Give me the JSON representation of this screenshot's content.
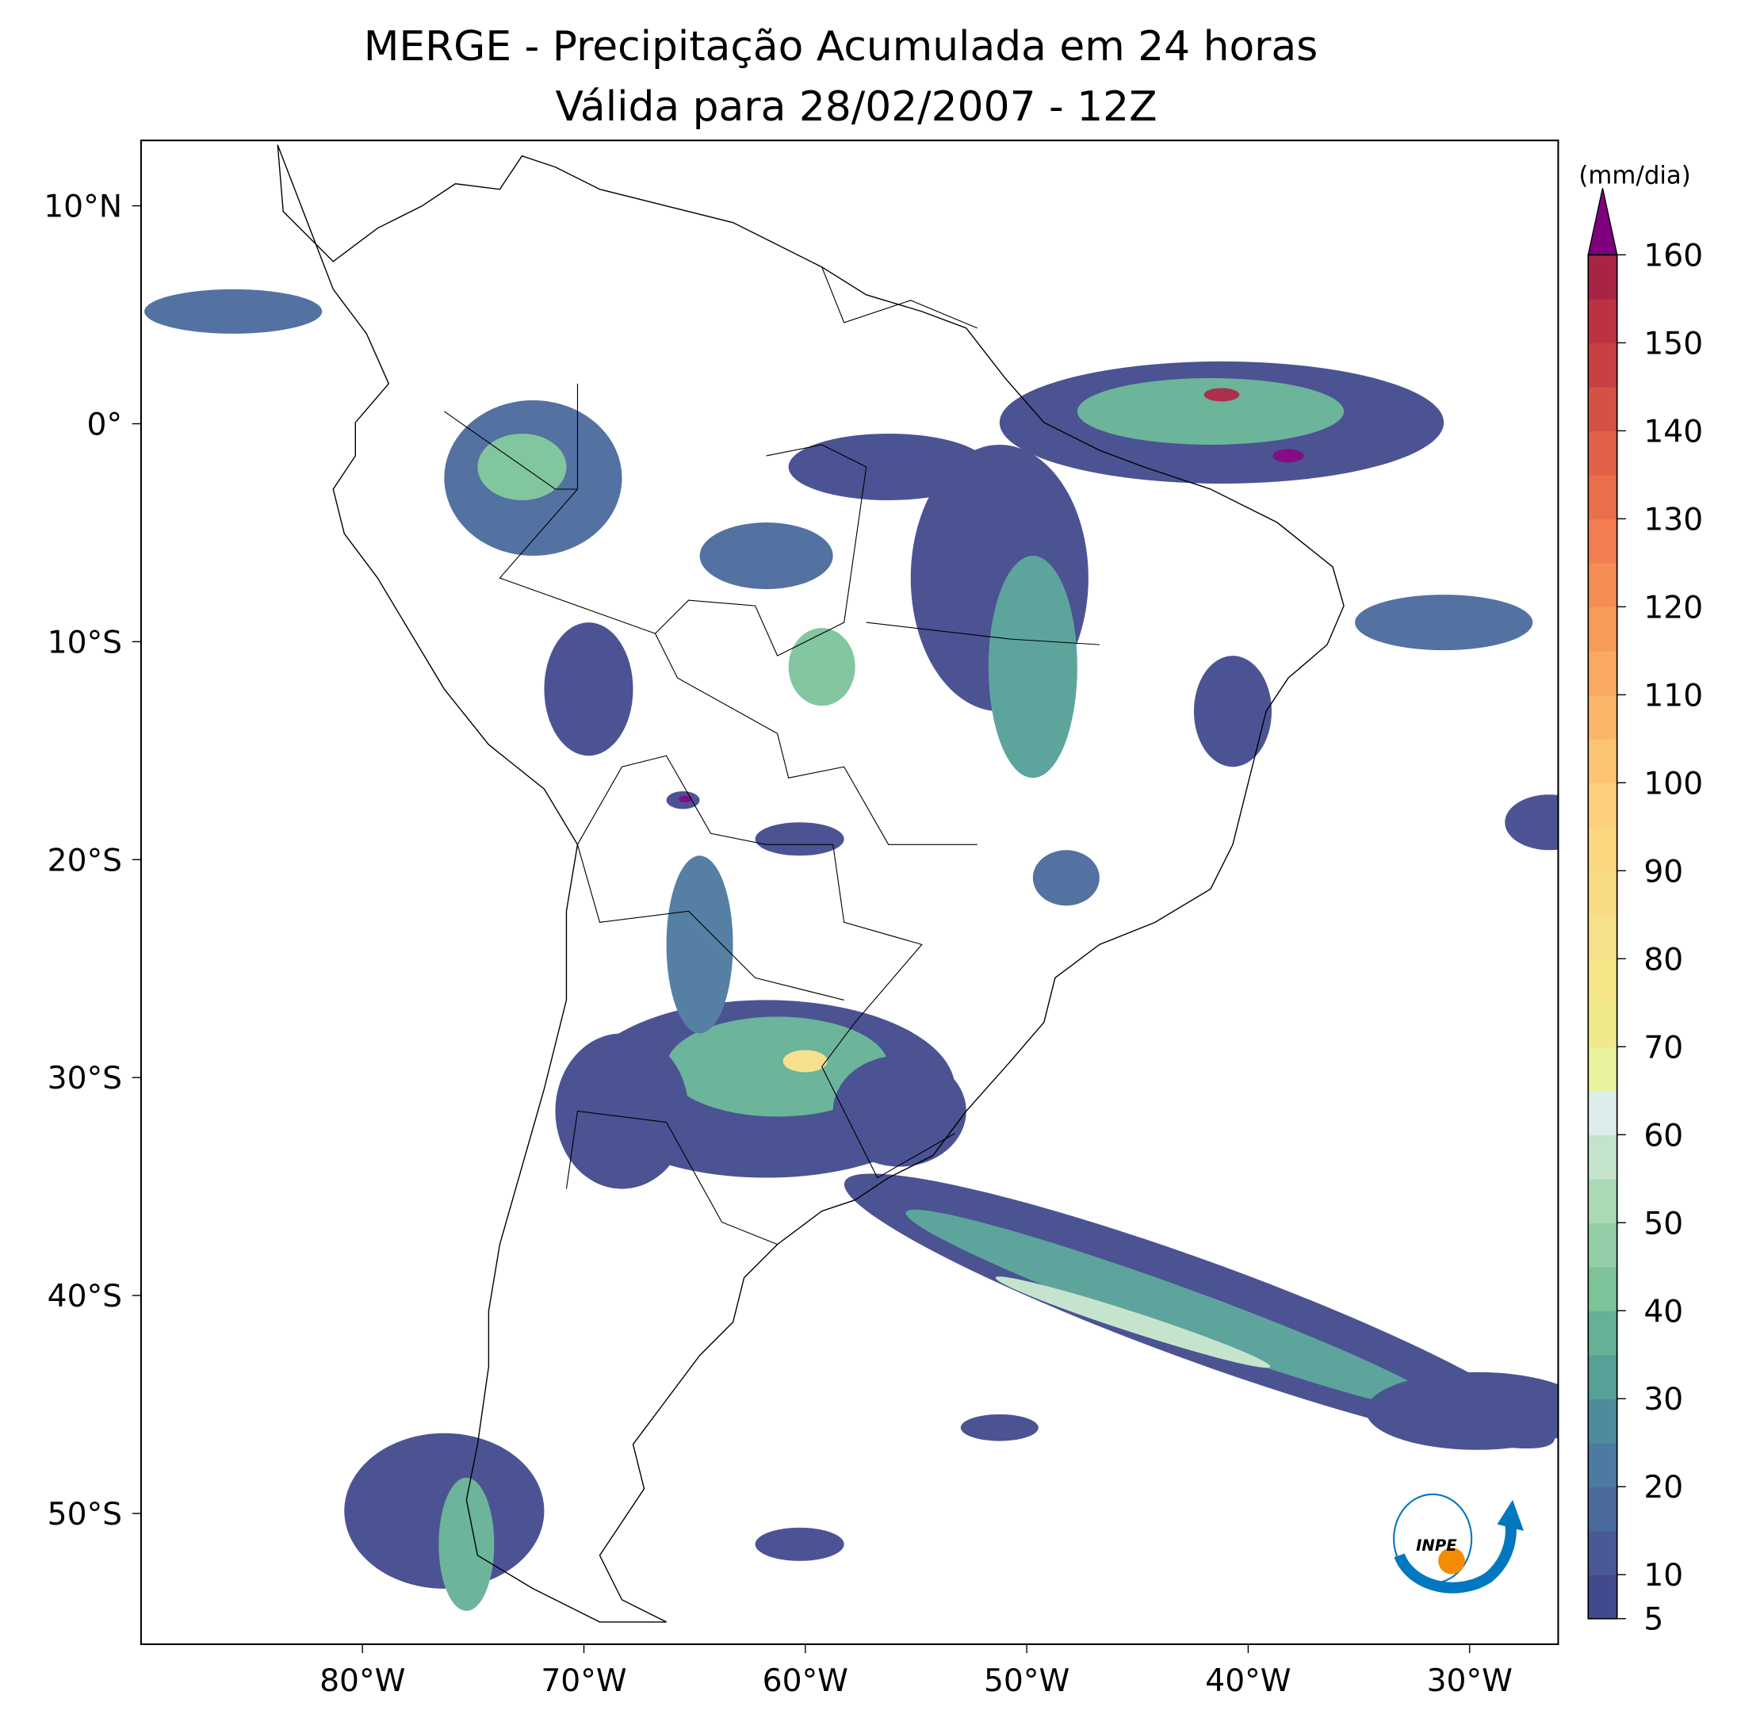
{
  "chart_data": {
    "type": "map",
    "title": "MERGE - Precipitação Acumulada em 24 horas",
    "subtitle": "Válida para 28/02/2007 - 12Z",
    "xlim": [
      -90,
      -26
    ],
    "ylim": [
      -56,
      13
    ],
    "xticks": [
      {
        "value": -80,
        "label": "80°W"
      },
      {
        "value": -70,
        "label": "70°W"
      },
      {
        "value": -60,
        "label": "60°W"
      },
      {
        "value": -50,
        "label": "50°W"
      },
      {
        "value": -40,
        "label": "40°W"
      },
      {
        "value": -30,
        "label": "30°W"
      }
    ],
    "yticks": [
      {
        "value": 10,
        "label": "10°N"
      },
      {
        "value": 0,
        "label": "0°"
      },
      {
        "value": -10,
        "label": "10°S"
      },
      {
        "value": -20,
        "label": "20°S"
      },
      {
        "value": -30,
        "label": "30°S"
      },
      {
        "value": -40,
        "label": "40°S"
      },
      {
        "value": -50,
        "label": "50°S"
      }
    ],
    "colorbar": {
      "label": "(mm/dia)",
      "levels": [
        5,
        10,
        15,
        20,
        25,
        30,
        35,
        40,
        45,
        50,
        55,
        60,
        65,
        70,
        75,
        80,
        85,
        90,
        95,
        100,
        105,
        110,
        115,
        120,
        125,
        130,
        135,
        140,
        145,
        150,
        155,
        160
      ],
      "ticks": [
        5,
        10,
        20,
        30,
        40,
        50,
        60,
        70,
        80,
        90,
        100,
        110,
        120,
        130,
        140,
        150,
        160
      ],
      "colors": [
        "#424a8e",
        "#485995",
        "#4a6a9c",
        "#4c7aa0",
        "#4e8c9d",
        "#55a097",
        "#65b195",
        "#7cc39a",
        "#93cea8",
        "#aad9b5",
        "#c3e3cb",
        "#dcedec",
        "#e9f29c",
        "#f0e98c",
        "#f4e587",
        "#f7e08a",
        "#f9db84",
        "#fbd77f",
        "#fcd07c",
        "#fcc372",
        "#fbb569",
        "#f9a962",
        "#f79b5b",
        "#f58d55",
        "#f17d50",
        "#e96e4a",
        "#e06147",
        "#d45245",
        "#c84043",
        "#bb3242",
        "#a82445"
      ],
      "extend_color": "#7f007f"
    }
  },
  "logo": {
    "text": "INPE"
  }
}
